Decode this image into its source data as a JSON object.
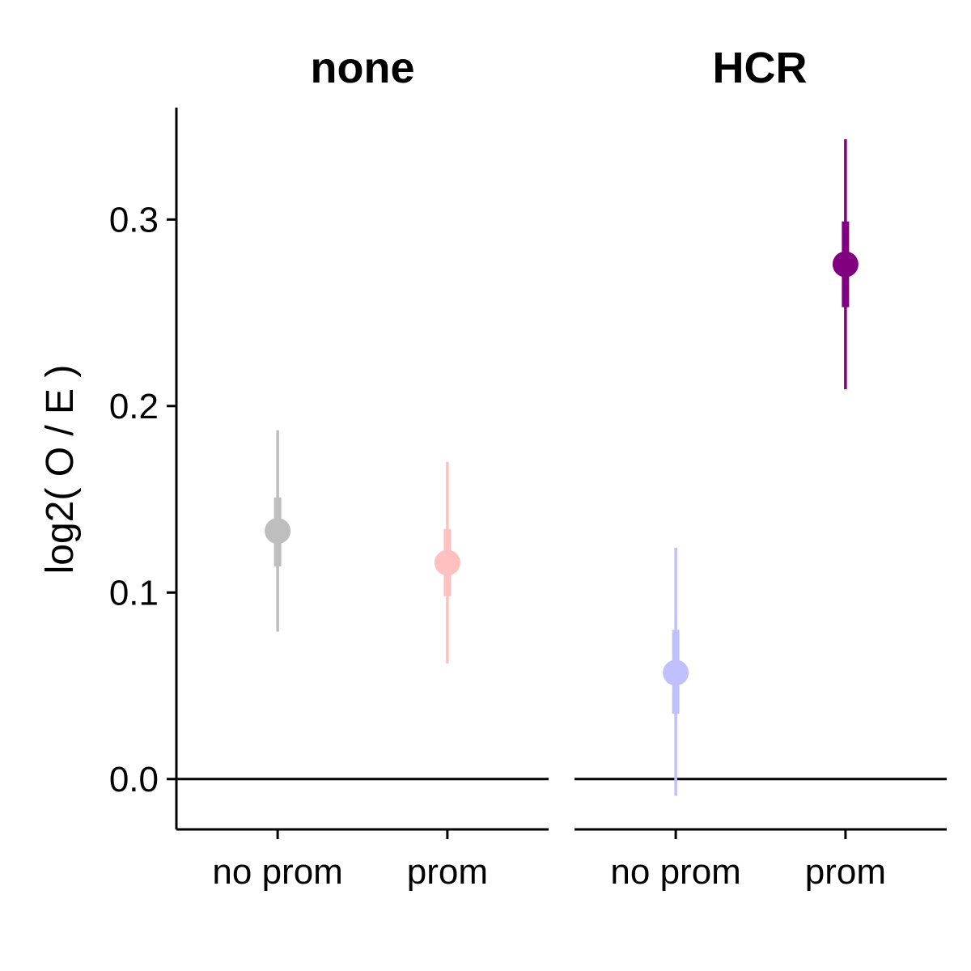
{
  "chart_data": {
    "type": "scatter",
    "ylabel": "log2( O / E )",
    "xlabel": "",
    "ylim": [
      -0.027,
      0.36
    ],
    "yticks": [
      0.0,
      0.1,
      0.2,
      0.3
    ],
    "ytick_labels": [
      "0.0",
      "0.1",
      "0.2",
      "0.3"
    ],
    "reference_line_y": 0.0,
    "grid": false,
    "legend": "none",
    "categories": [
      "no prom",
      "prom"
    ],
    "panels": [
      {
        "title": "none",
        "points": [
          {
            "category": "no prom",
            "value": 0.133,
            "inner": [
              0.114,
              0.151
            ],
            "outer": [
              0.079,
              0.187
            ],
            "color": "#bebebe"
          },
          {
            "category": "prom",
            "value": 0.116,
            "inner": [
              0.098,
              0.134
            ],
            "outer": [
              0.062,
              0.17
            ],
            "color": "#ffc0c0"
          }
        ]
      },
      {
        "title": "HCR",
        "points": [
          {
            "category": "no prom",
            "value": 0.057,
            "inner": [
              0.035,
              0.08
            ],
            "outer": [
              -0.009,
              0.124
            ],
            "color": "#c0c0ff"
          },
          {
            "category": "prom",
            "value": 0.276,
            "inner": [
              0.253,
              0.299
            ],
            "outer": [
              0.209,
              0.343
            ],
            "color": "#800080"
          }
        ]
      }
    ]
  }
}
